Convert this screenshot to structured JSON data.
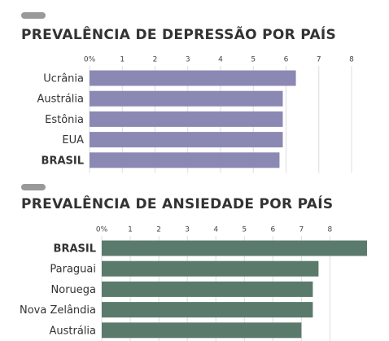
{
  "chart_data": [
    {
      "type": "bar",
      "orientation": "horizontal",
      "title": "PREVALÊNCIA DE DEPRESSÃO POR PAÍS",
      "categories": [
        "Ucrânia",
        "Austrália",
        "Estônia",
        "EUA",
        "BRASIL"
      ],
      "values": [
        6.3,
        5.9,
        5.9,
        5.9,
        5.8
      ],
      "color": "#8c88b4",
      "bold_category": 4,
      "xlim": [
        0,
        8
      ],
      "xticks": [
        {
          "value": 0,
          "label": "0%"
        },
        1,
        2,
        3,
        4,
        5,
        6,
        7,
        8
      ],
      "grid": true
    },
    {
      "type": "bar",
      "orientation": "horizontal",
      "title": "PREVALÊNCIA DE ANSIEDADE POR PAÍS",
      "categories": [
        "BRASIL",
        "Paraguai",
        "Noruega",
        "Nova Zelândia",
        "Austrália"
      ],
      "values": [
        9.3,
        7.6,
        7.4,
        7.4,
        7.0
      ],
      "color": "#5a7a6c",
      "bold_category": 0,
      "xlim": [
        0,
        9.5
      ],
      "xticks": [
        {
          "value": 0,
          "label": "0%"
        },
        1,
        2,
        3,
        4,
        5,
        6,
        7,
        8
      ],
      "grid": true
    }
  ]
}
